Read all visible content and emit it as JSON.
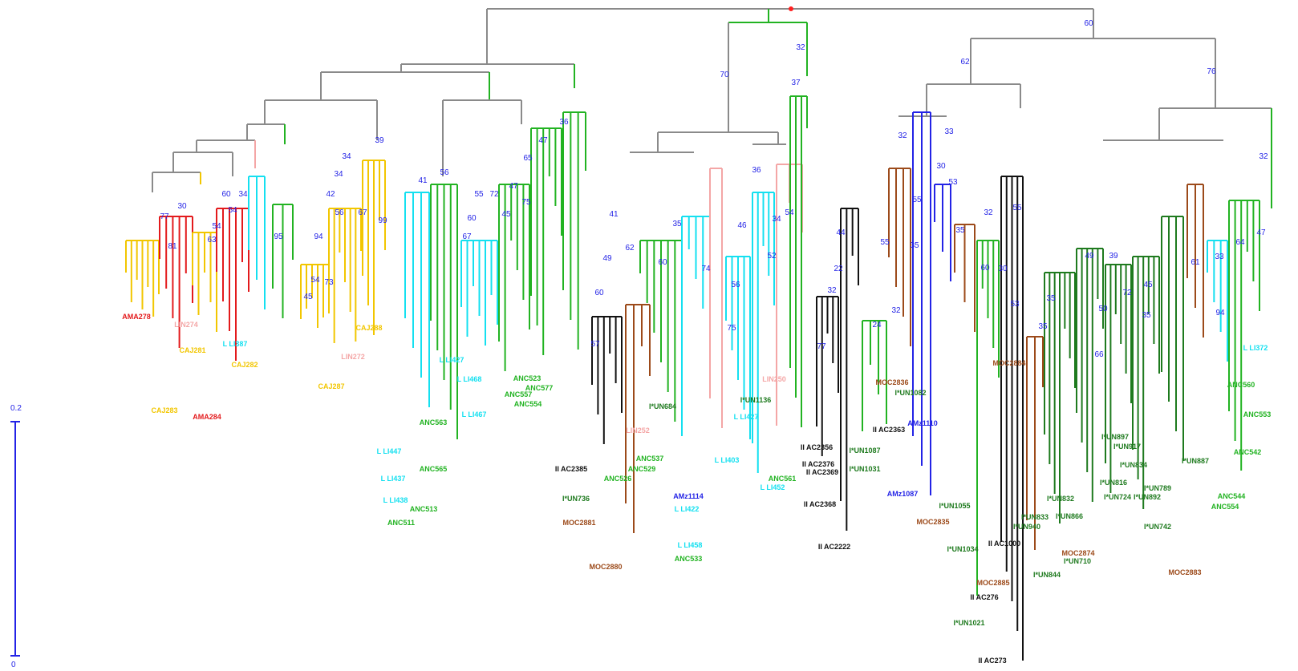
{
  "colors": {
    "grey": "#8a8a8a",
    "yellow": "#f2c600",
    "red": "#e31a1c",
    "pink": "#f4a6a6",
    "green": "#22b322",
    "dkgreen": "#1e7a1e",
    "cyan": "#14e0f0",
    "blue": "#2323e6",
    "black": "#111111",
    "brown": "#9c4a1a",
    "root": "#ff2020",
    "scale": "#2323e6",
    "bootstrap": "#2323e6"
  },
  "scale_bar": {
    "top_label": "0.2",
    "bottom_label": "0"
  },
  "bootstrap_values": [
    {
      "id": "b01",
      "text": "60"
    },
    {
      "id": "b02",
      "text": "70"
    },
    {
      "id": "b03",
      "text": "32"
    },
    {
      "id": "b04",
      "text": "62"
    },
    {
      "id": "b05",
      "text": "76"
    },
    {
      "id": "b06",
      "text": "37"
    },
    {
      "id": "b07",
      "text": "32"
    },
    {
      "id": "b08",
      "text": "36"
    },
    {
      "id": "b09",
      "text": "65"
    },
    {
      "id": "b10",
      "text": "47"
    },
    {
      "id": "b11",
      "text": "39"
    },
    {
      "id": "b12",
      "text": "34"
    },
    {
      "id": "b13",
      "text": "34"
    },
    {
      "id": "b14",
      "text": "42"
    },
    {
      "id": "b15",
      "text": "56"
    },
    {
      "id": "b16",
      "text": "67"
    },
    {
      "id": "b17",
      "text": "99"
    },
    {
      "id": "b18",
      "text": "94"
    },
    {
      "id": "b19",
      "text": "54"
    },
    {
      "id": "b20",
      "text": "73"
    },
    {
      "id": "b21",
      "text": "45"
    },
    {
      "id": "b22",
      "text": "95"
    },
    {
      "id": "b23",
      "text": "77"
    },
    {
      "id": "b24",
      "text": "30"
    },
    {
      "id": "b25",
      "text": "60"
    },
    {
      "id": "b26",
      "text": "34"
    },
    {
      "id": "b27",
      "text": "54"
    },
    {
      "id": "b28",
      "text": "54"
    },
    {
      "id": "b29",
      "text": "63"
    },
    {
      "id": "b30",
      "text": "81"
    },
    {
      "id": "b31",
      "text": "41"
    },
    {
      "id": "b32",
      "text": "56"
    },
    {
      "id": "b33",
      "text": "55"
    },
    {
      "id": "b34",
      "text": "72"
    },
    {
      "id": "b35",
      "text": "47"
    },
    {
      "id": "b36",
      "text": "45"
    },
    {
      "id": "b37",
      "text": "75"
    },
    {
      "id": "b38",
      "text": "60"
    },
    {
      "id": "b39",
      "text": "67"
    },
    {
      "id": "b40",
      "text": "36"
    },
    {
      "id": "b41",
      "text": "41"
    },
    {
      "id": "b42",
      "text": "49"
    },
    {
      "id": "b43",
      "text": "60"
    },
    {
      "id": "b44",
      "text": "62"
    },
    {
      "id": "b45",
      "text": "60"
    },
    {
      "id": "b46",
      "text": "35"
    },
    {
      "id": "b47",
      "text": "74"
    },
    {
      "id": "b48",
      "text": "57"
    },
    {
      "id": "b49",
      "text": "34"
    },
    {
      "id": "b50",
      "text": "46"
    },
    {
      "id": "b51",
      "text": "56"
    },
    {
      "id": "b52",
      "text": "52"
    },
    {
      "id": "b53",
      "text": "54"
    },
    {
      "id": "b54",
      "text": "75"
    },
    {
      "id": "b55",
      "text": "32"
    },
    {
      "id": "b56",
      "text": "33"
    },
    {
      "id": "b57",
      "text": "55"
    },
    {
      "id": "b58",
      "text": "30"
    },
    {
      "id": "b59",
      "text": "53"
    },
    {
      "id": "b60",
      "text": "44"
    },
    {
      "id": "b61",
      "text": "55"
    },
    {
      "id": "b62",
      "text": "32"
    },
    {
      "id": "b63",
      "text": "35"
    },
    {
      "id": "b64",
      "text": "35"
    },
    {
      "id": "b65",
      "text": "22"
    },
    {
      "id": "b66",
      "text": "24"
    },
    {
      "id": "b67",
      "text": "32"
    },
    {
      "id": "b68",
      "text": "77"
    },
    {
      "id": "b69",
      "text": "32"
    },
    {
      "id": "b70",
      "text": "60"
    },
    {
      "id": "b71",
      "text": "30"
    },
    {
      "id": "b72",
      "text": "55"
    },
    {
      "id": "b73",
      "text": "53"
    },
    {
      "id": "b74",
      "text": "35"
    },
    {
      "id": "b75",
      "text": "35"
    },
    {
      "id": "b76",
      "text": "49"
    },
    {
      "id": "b77",
      "text": "39"
    },
    {
      "id": "b78",
      "text": "50"
    },
    {
      "id": "b79",
      "text": "72"
    },
    {
      "id": "b80",
      "text": "45"
    },
    {
      "id": "b81",
      "text": "35"
    },
    {
      "id": "b82",
      "text": "66"
    },
    {
      "id": "b83",
      "text": "61"
    },
    {
      "id": "b84",
      "text": "33"
    },
    {
      "id": "b85",
      "text": "64"
    },
    {
      "id": "b86",
      "text": "47"
    },
    {
      "id": "b87",
      "text": "94"
    }
  ],
  "tip_labels": [
    {
      "id": "t01",
      "text": "AMA278",
      "color": "red"
    },
    {
      "id": "t02",
      "text": "LIN274",
      "color": "pink"
    },
    {
      "id": "t03",
      "text": "CAJ283",
      "color": "yellow"
    },
    {
      "id": "t04",
      "text": "AMA284",
      "color": "red"
    },
    {
      "id": "t05",
      "text": "L LI387",
      "color": "cyan"
    },
    {
      "id": "t06",
      "text": "LIN272",
      "color": "pink"
    },
    {
      "id": "t07",
      "text": "CAJ281",
      "color": "yellow"
    },
    {
      "id": "t08",
      "text": "CAJ287",
      "color": "yellow"
    },
    {
      "id": "t09",
      "text": "CAJ288",
      "color": "yellow"
    },
    {
      "id": "t10",
      "text": "CAJ282",
      "color": "yellow"
    },
    {
      "id": "t11",
      "text": "L LI427",
      "color": "cyan"
    },
    {
      "id": "t12",
      "text": "L LI468",
      "color": "cyan"
    },
    {
      "id": "t13",
      "text": "L LI467",
      "color": "cyan"
    },
    {
      "id": "t14",
      "text": "L LI447",
      "color": "cyan"
    },
    {
      "id": "t15",
      "text": "L LI437",
      "color": "cyan"
    },
    {
      "id": "t16",
      "text": "L LI438",
      "color": "cyan"
    },
    {
      "id": "t17",
      "text": "ANC513",
      "color": "green"
    },
    {
      "id": "t18",
      "text": "ANC511",
      "color": "green"
    },
    {
      "id": "t19",
      "text": "ANC565",
      "color": "green"
    },
    {
      "id": "t20",
      "text": "ANC563",
      "color": "green"
    },
    {
      "id": "t21",
      "text": "ANC557",
      "color": "green"
    },
    {
      "id": "t22",
      "text": "ANC554",
      "color": "green"
    },
    {
      "id": "t23",
      "text": "ANC577",
      "color": "green"
    },
    {
      "id": "t24",
      "text": "ANC523",
      "color": "green"
    },
    {
      "id": "t25",
      "text": "II AC2385",
      "color": "black"
    },
    {
      "id": "t26",
      "text": "I*UN736",
      "color": "dkgreen"
    },
    {
      "id": "t27",
      "text": "MOC2881",
      "color": "brown"
    },
    {
      "id": "t28",
      "text": "MOC2880",
      "color": "brown"
    },
    {
      "id": "t29",
      "text": "LIN252",
      "color": "pink"
    },
    {
      "id": "t30",
      "text": "ANC526",
      "color": "green"
    },
    {
      "id": "t31",
      "text": "ANC529",
      "color": "green"
    },
    {
      "id": "t32",
      "text": "ANC537",
      "color": "green"
    },
    {
      "id": "t33",
      "text": "I*UN684",
      "color": "dkgreen"
    },
    {
      "id": "t34",
      "text": "L LI422",
      "color": "cyan"
    },
    {
      "id": "t35",
      "text": "AMz1114",
      "color": "blue"
    },
    {
      "id": "t36",
      "text": "L LI458",
      "color": "cyan"
    },
    {
      "id": "t37",
      "text": "ANC533",
      "color": "green"
    },
    {
      "id": "t38",
      "text": "L LI403",
      "color": "cyan"
    },
    {
      "id": "t39",
      "text": "L LI427",
      "color": "cyan"
    },
    {
      "id": "t40",
      "text": "L LI452",
      "color": "cyan"
    },
    {
      "id": "t41",
      "text": "I*UN1136",
      "color": "dkgreen"
    },
    {
      "id": "t42",
      "text": "LIN250",
      "color": "pink"
    },
    {
      "id": "t43",
      "text": "ANC561",
      "color": "green"
    },
    {
      "id": "t44",
      "text": "II AC2356",
      "color": "black"
    },
    {
      "id": "t45",
      "text": "II AC2376",
      "color": "black"
    },
    {
      "id": "t46",
      "text": "II AC2369",
      "color": "black"
    },
    {
      "id": "t47",
      "text": "II AC2368",
      "color": "black"
    },
    {
      "id": "t48",
      "text": "II AC2222",
      "color": "black"
    },
    {
      "id": "t49",
      "text": "I*UN1087",
      "color": "dkgreen"
    },
    {
      "id": "t50",
      "text": "I*UN1031",
      "color": "dkgreen"
    },
    {
      "id": "t51",
      "text": "II AC2363",
      "color": "black"
    },
    {
      "id": "t52",
      "text": "MOC2836",
      "color": "brown"
    },
    {
      "id": "t53",
      "text": "I*UN1082",
      "color": "dkgreen"
    },
    {
      "id": "t54",
      "text": "AMz1087",
      "color": "blue"
    },
    {
      "id": "t55",
      "text": "AMz1110",
      "color": "blue"
    },
    {
      "id": "t56",
      "text": "I*UN1055",
      "color": "dkgreen"
    },
    {
      "id": "t57",
      "text": "MOC2835",
      "color": "brown"
    },
    {
      "id": "t58",
      "text": "I*UN1034",
      "color": "dkgreen"
    },
    {
      "id": "t59",
      "text": "II AC1000",
      "color": "black"
    },
    {
      "id": "t60",
      "text": "MOC2885",
      "color": "brown"
    },
    {
      "id": "t61",
      "text": "II AC276",
      "color": "black"
    },
    {
      "id": "t62",
      "text": "I*UN1021",
      "color": "dkgreen"
    },
    {
      "id": "t63",
      "text": "II AC273",
      "color": "black"
    },
    {
      "id": "t64",
      "text": "MOC2884",
      "color": "brown"
    },
    {
      "id": "t65",
      "text": "I*UN940",
      "color": "dkgreen"
    },
    {
      "id": "t66",
      "text": "I*UN833",
      "color": "dkgreen"
    },
    {
      "id": "t67",
      "text": "I*UN832",
      "color": "dkgreen"
    },
    {
      "id": "t68",
      "text": "I*UN866",
      "color": "dkgreen"
    },
    {
      "id": "t69",
      "text": "I*UN844",
      "color": "dkgreen"
    },
    {
      "id": "t70",
      "text": "MOC2874",
      "color": "brown"
    },
    {
      "id": "t71",
      "text": "I*UN710",
      "color": "dkgreen"
    },
    {
      "id": "t72",
      "text": "I*UN816",
      "color": "dkgreen"
    },
    {
      "id": "t73",
      "text": "I*UN724",
      "color": "dkgreen"
    },
    {
      "id": "t74",
      "text": "I*UN897",
      "color": "dkgreen"
    },
    {
      "id": "t75",
      "text": "I*UN917",
      "color": "dkgreen"
    },
    {
      "id": "t76",
      "text": "I*UN834",
      "color": "dkgreen"
    },
    {
      "id": "t77",
      "text": "I*UN892",
      "color": "dkgreen"
    },
    {
      "id": "t78",
      "text": "I*UN789",
      "color": "dkgreen"
    },
    {
      "id": "t79",
      "text": "I*UN742",
      "color": "dkgreen"
    },
    {
      "id": "t80",
      "text": "MOC2883",
      "color": "brown"
    },
    {
      "id": "t81",
      "text": "I*UN887",
      "color": "dkgreen"
    },
    {
      "id": "t82",
      "text": "ANC544",
      "color": "green"
    },
    {
      "id": "t83",
      "text": "ANC554",
      "color": "green"
    },
    {
      "id": "t84",
      "text": "ANC542",
      "color": "green"
    },
    {
      "id": "t85",
      "text": "ANC553",
      "color": "green"
    },
    {
      "id": "t86",
      "text": "ANC560",
      "color": "green"
    },
    {
      "id": "t87",
      "text": "L LI372",
      "color": "cyan"
    }
  ]
}
